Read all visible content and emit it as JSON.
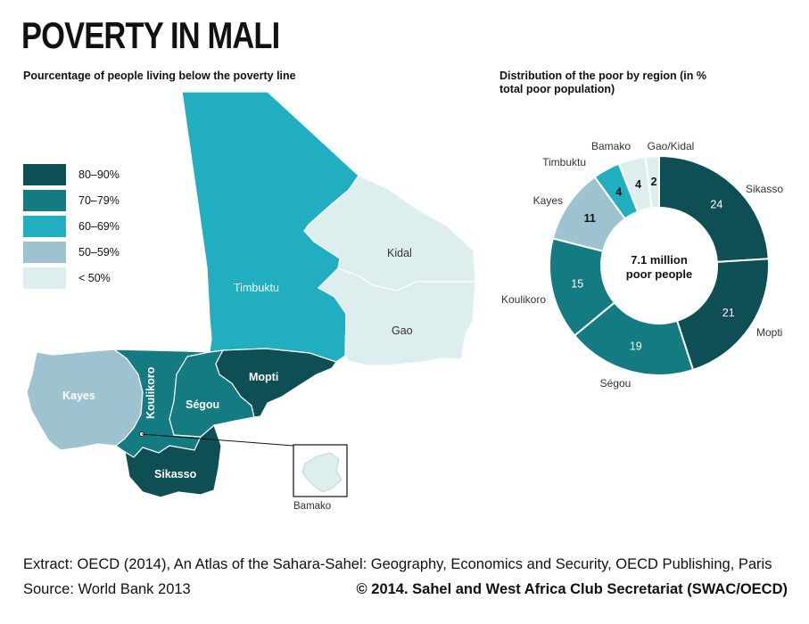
{
  "title": "POVERTY IN MALI",
  "map": {
    "subtitle": "Pourcentage of people living below the poverty line",
    "legend": [
      {
        "label": "80–90%",
        "color": "#0e4f55"
      },
      {
        "label": "70–79%",
        "color": "#147b83"
      },
      {
        "label": "60–69%",
        "color": "#21aec0"
      },
      {
        "label": "50–59%",
        "color": "#9cc3cf"
      },
      {
        "label": "< 50%",
        "color": "#ddeeee"
      }
    ],
    "regions": [
      {
        "name": "Timbuktu",
        "label": "Timbuktu",
        "color": "#21aec0"
      },
      {
        "name": "Kidal",
        "label": "Kidal",
        "color": "#ddeeee"
      },
      {
        "name": "Gao",
        "label": "Gao",
        "color": "#ddeeee"
      },
      {
        "name": "Kayes",
        "label": "Kayes",
        "color": "#9cc3cf"
      },
      {
        "name": "Koulikoro",
        "label": "Koulikoro",
        "color": "#147b83"
      },
      {
        "name": "Segou",
        "label": "Ségou",
        "color": "#147b83"
      },
      {
        "name": "Mopti",
        "label": "Mopti",
        "color": "#0e4f55"
      },
      {
        "name": "Sikasso",
        "label": "Sikasso",
        "color": "#0e4f55"
      },
      {
        "name": "Bamako",
        "label": "Bamako",
        "color": "#ddeeee"
      }
    ]
  },
  "chart_data": {
    "type": "pie",
    "subtitle": "Distribution of the poor by region (in % total poor population)",
    "center_label": [
      "7.1 million",
      "poor people"
    ],
    "categories": [
      "Sikasso",
      "Mopti",
      "Ségou",
      "Koulikoro",
      "Kayes",
      "Timbuktu",
      "Bamako",
      "Gao/Kidal"
    ],
    "values": [
      24,
      21,
      19,
      15,
      11,
      4,
      4,
      2
    ],
    "colors": [
      "#0e4f55",
      "#0e4f55",
      "#147b83",
      "#147b83",
      "#9cc3cf",
      "#21aec0",
      "#ddeeee",
      "#ddeeee"
    ],
    "donut": true
  },
  "footer": {
    "extract": "Extract: OECD (2014), An Atlas of the Sahara-Sahel: Geography, Economics  and Security, OECD Publishing, Paris",
    "source": "Source: World Bank 2013",
    "copyright": "© 2014. Sahel and West Africa Club Secretariat (SWAC/OECD)"
  }
}
